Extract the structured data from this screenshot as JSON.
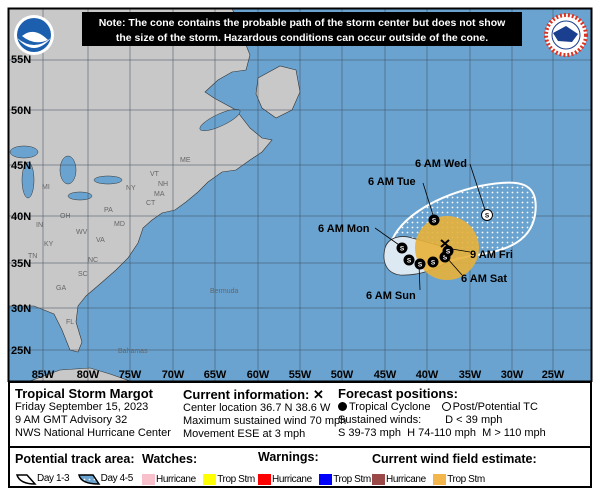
{
  "note": {
    "line1": "Note: The cone contains the probable path of the storm center but does not show",
    "line2": "the size of the storm. Hazardous conditions can occur outside of the cone."
  },
  "logos": {
    "left": "NOAA",
    "right": "NATIONAL WEATHER SERVICE"
  },
  "map": {
    "colors": {
      "ocean": "#6aa3cf",
      "land": "#c8c8c8",
      "cone_day13": "#dce8f2",
      "trop_stm_wind": "#e8b13a",
      "grid": "#3a4a5a"
    },
    "lat_labels": [
      "55N",
      "50N",
      "45N",
      "40N",
      "35N",
      "30N",
      "25N"
    ],
    "lon_labels": [
      "85W",
      "80W",
      "75W",
      "70W",
      "65W",
      "60W",
      "55W",
      "50W",
      "45W",
      "40W",
      "35W",
      "30W",
      "25W"
    ],
    "state_labels": [
      "ME",
      "VT",
      "NH",
      "MA",
      "CT",
      "NY",
      "PA",
      "MI",
      "OH",
      "WV",
      "VA",
      "KY",
      "TN",
      "NC",
      "SC",
      "GA",
      "FL",
      "IN",
      "MD"
    ],
    "place_labels": {
      "bermuda": "Bermuda",
      "bahamas": "Bahamas"
    },
    "track_labels": {
      "wed": "6 AM Wed",
      "tue": "6 AM Tue",
      "mon": "6 AM Mon",
      "fri": "9 AM Fri",
      "sat": "6 AM Sat",
      "sun": "6 AM Sun"
    },
    "point_symbol": "S"
  },
  "info": {
    "storm_name": "Tropical Storm Margot",
    "date": "Friday September 15, 2023",
    "advisory": "9 AM GMT Advisory 32",
    "center": "NWS National Hurricane Center",
    "current_title": "Current information: ✕",
    "location": "Center location 36.7 N 38.6 W",
    "max_wind": "Maximum sustained wind 70 mph",
    "movement": "Movement ESE at 3 mph",
    "forecast_title": "Forecast positions:",
    "tropical_cyclone": "Tropical Cyclone",
    "post_potential": "Post/Potential TC",
    "sustained": "Sustained winds:",
    "d": "D < 39 mph",
    "scale": "S 39-73 mph  H 74-110 mph  M > 110 mph"
  },
  "legend": {
    "track_title": "Potential track area:",
    "day13": "Day 1-3",
    "day45": "Day 4-5",
    "watches_title": "Watches:",
    "warnings_title": "Warnings:",
    "wind_title": "Current wind field estimate:",
    "hurricane": "Hurricane",
    "trop_stm": "Trop Stm",
    "colors": {
      "watch_hurricane": "#f7c0cb",
      "watch_ts": "#ffff00",
      "warn_hurricane": "#ff0000",
      "warn_ts": "#0000ff",
      "wind_hurricane": "#9b4848",
      "wind_ts": "#f2b64c"
    }
  }
}
